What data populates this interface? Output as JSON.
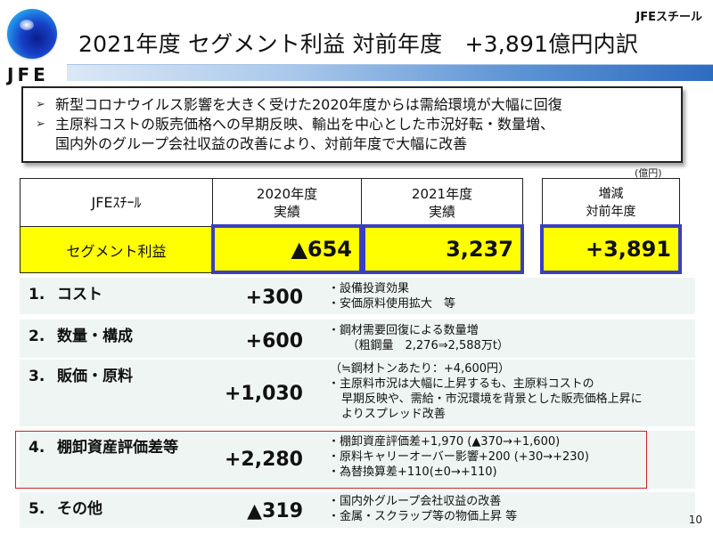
{
  "header": {
    "logo_text": "JFE",
    "company": "JFEスチール",
    "title": "2021年度 セグメント利益 対前年度　+3,891億円内訳"
  },
  "summary": {
    "bullet_icon": "arrowhead-bullet-icon",
    "lines": [
      {
        "text": "新型コロナウイルス影響を大きく受けた2020年度からは需給環境が大幅に回復",
        "bullet": true
      },
      {
        "text": "主原料コストの販売価格への早期反映、輸出を中心とした市況好転・数量増、",
        "bullet": true
      },
      {
        "text": "国内外のグループ会社収益の改善により、対前年度で大幅に改善",
        "bullet": false
      }
    ],
    "bullet_glyph": "➢"
  },
  "table": {
    "unit": "(億円)",
    "header": {
      "company": "JFEｽﾁｰﾙ",
      "fy2020": [
        "2020年度",
        "実績"
      ],
      "fy2021": [
        "2021年度",
        "実績"
      ],
      "change": [
        "増減",
        "対前年度"
      ]
    },
    "segment_row": {
      "label": "セグメント利益",
      "fy2020": "▲654",
      "fy2021": "3,237",
      "change": "+3,891"
    },
    "colors": {
      "highlight_fill": "#ffff00",
      "value_border": "#3a3fbf",
      "row_bg": "#eef5f3",
      "focus_border": "#d02020"
    }
  },
  "breakdown": [
    {
      "num": "1.",
      "label": "コスト",
      "amount": "+300",
      "notes": [
        {
          "text": "設備投資効果",
          "type": "bullet"
        },
        {
          "text": "安価原料使用拡大　等",
          "type": "bullet"
        }
      ]
    },
    {
      "num": "2.",
      "label": "数量・構成",
      "amount": "+600",
      "notes": [
        {
          "text": "鋼材需要回復による数量増",
          "type": "bullet"
        },
        {
          "text": "　（粗鋼量　2,276⇒2,588万t）",
          "type": "indent"
        }
      ]
    },
    {
      "num": "3.",
      "label": "販価・原料",
      "amount": "+1,030",
      "notes": [
        {
          "text": "（≒鋼材トンあたり：+4,600円）",
          "type": "plain"
        },
        {
          "text": "主原料市況は大幅に上昇するも、主原料コストの",
          "type": "bullet"
        },
        {
          "text": "早期反映や、需給・市況環境を背景とした販売価格上昇に",
          "type": "indent"
        },
        {
          "text": "よりスプレッド改善",
          "type": "indent"
        }
      ]
    },
    {
      "num": "4.",
      "label": "棚卸資産評価差等",
      "amount": "+2,280",
      "notes": [
        {
          "text": "棚卸資産評価差+1,970 (▲370→+1,600)",
          "type": "bullet"
        },
        {
          "text": "原料キャリーオーバー影響+200 (+30→+230)",
          "type": "bullet"
        },
        {
          "text": "為替換算差+110(±0→+110)",
          "type": "bullet"
        }
      ]
    },
    {
      "num": "5.",
      "label": "その他",
      "amount": "▲319",
      "notes": [
        {
          "text": "国内外グループ会社収益の改善",
          "type": "bullet"
        },
        {
          "text": "金属・スクラップ等の物価上昇 等",
          "type": "bullet"
        }
      ]
    }
  ],
  "footer": {
    "page_number": "10"
  }
}
